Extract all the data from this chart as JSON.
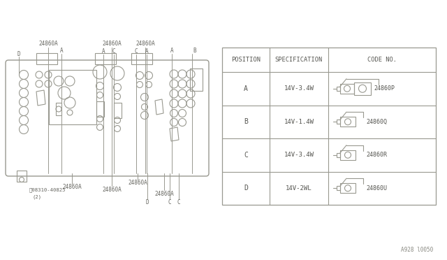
{
  "bg_color": "#ffffff",
  "line_color": "#999990",
  "text_color": "#666660",
  "bottom_label": "A928 l0050",
  "table_positions": [
    "A",
    "B",
    "C",
    "D"
  ],
  "table_specs": [
    "14V-3.4W",
    "14V-1.4W",
    "14V-3.4W",
    "14V-2WL"
  ],
  "table_codes": [
    "24860P",
    "24860Q",
    "24860R",
    "24860U"
  ],
  "table_header": [
    "POSITION",
    "SPECIFICATION",
    "CODE NO."
  ]
}
